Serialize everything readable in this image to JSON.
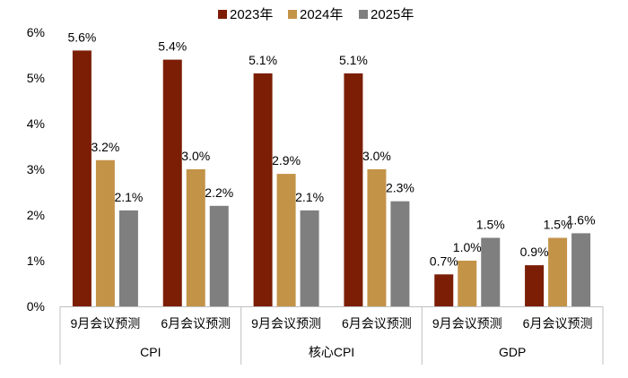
{
  "chart_data": {
    "type": "bar",
    "title": "",
    "xlabel": "",
    "ylabel": "",
    "ylim": [
      0,
      6
    ],
    "yticks": [
      "0%",
      "1%",
      "2%",
      "3%",
      "4%",
      "5%",
      "6%"
    ],
    "legend_position": "top",
    "groups": [
      {
        "name": "CPI",
        "categories": [
          "9月会议预测",
          "6月会议预测"
        ]
      },
      {
        "name": "核心CPI",
        "categories": [
          "9月会议预测",
          "6月会议预测"
        ]
      },
      {
        "name": "GDP",
        "categories": [
          "9月会议预测",
          "6月会议预测"
        ]
      }
    ],
    "series": [
      {
        "name": "2023年",
        "color": "#7b1e05",
        "values": [
          5.6,
          5.4,
          5.1,
          5.1,
          0.7,
          0.9
        ],
        "labels": [
          "5.6%",
          "5.4%",
          "5.1%",
          "5.1%",
          "0.7%",
          "0.9%"
        ]
      },
      {
        "name": "2024年",
        "color": "#c39348",
        "values": [
          3.2,
          3.0,
          2.9,
          3.0,
          1.0,
          1.5
        ],
        "labels": [
          "3.2%",
          "3.0%",
          "2.9%",
          "3.0%",
          "1.0%",
          "1.5%"
        ]
      },
      {
        "name": "2025年",
        "color": "#7f7f7f",
        "values": [
          2.1,
          2.2,
          2.1,
          2.3,
          1.5,
          1.6
        ],
        "labels": [
          "2.1%",
          "2.2%",
          "2.1%",
          "2.3%",
          "1.5%",
          "1.6%"
        ]
      }
    ]
  }
}
